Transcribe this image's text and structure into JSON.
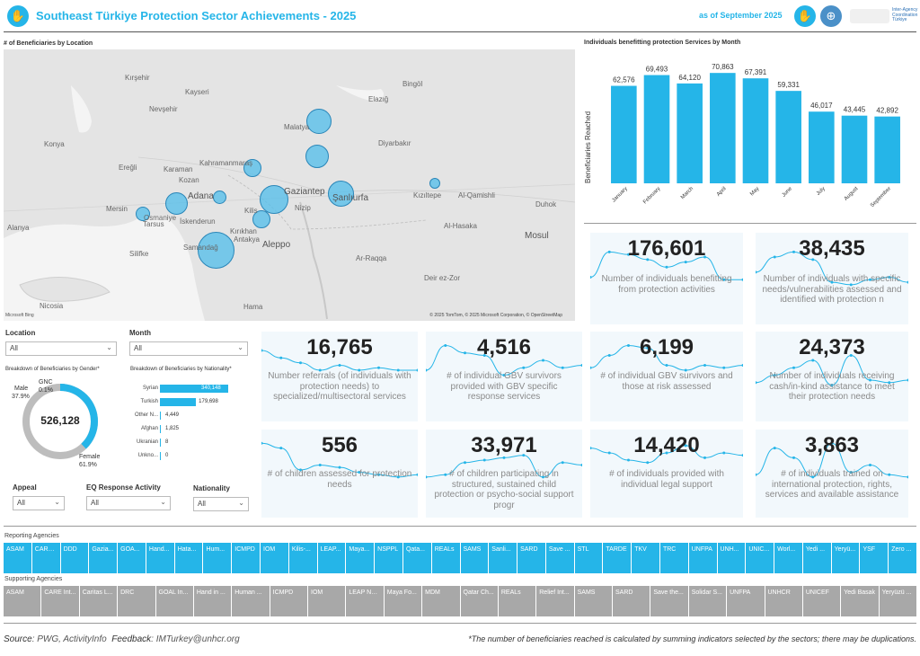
{
  "header": {
    "title": "Southeast Türkiye Protection Sector Achievements - 2025",
    "as_of": "as of September 2025",
    "partner_logo_text": "Inter-Agency Coordination Türkiye"
  },
  "map": {
    "title": "# of Beneficiaries by Location",
    "places": [
      "Kırşehir",
      "Kayseri",
      "Nevşehir",
      "Konya",
      "Ereğli",
      "Karaman",
      "Kahramanmaraş",
      "Adana",
      "Mersin",
      "Osmaniye",
      "İskenderun",
      "Kilis",
      "Kırıkhan",
      "Samandağ",
      "Antakya",
      "Aleppo",
      "Hama",
      "Gaziantep",
      "Nizip",
      "Şanlıurfa",
      "Diyarbakır",
      "Elazığ",
      "Bingöl",
      "Malatya",
      "Kızıltepe",
      "Al-Qamishli",
      "Duhok",
      "Mosul",
      "Al-Hasaka",
      "Ar-Raqqa",
      "Deir ez-Zor",
      "Nicosia",
      "Alanya",
      "Silifke",
      "Tarsus",
      "Kozan"
    ],
    "attribution": "© 2025 TomTom, © 2025 Microsoft Corporation, © OpenStreetMap",
    "provider": "Microsoft Bing"
  },
  "filters": {
    "location": {
      "label": "Location",
      "value": "All"
    },
    "month": {
      "label": "Month",
      "value": "All"
    },
    "appeal": {
      "label": "Appeal",
      "value": "All"
    },
    "eq_response": {
      "label": "EQ Response Activity",
      "value": "All"
    },
    "nationality": {
      "label": "Nationality",
      "value": "All"
    }
  },
  "gender": {
    "title": "Breakdown of Beneficiaries by Gender*",
    "total": "526,128",
    "male_label": "Male",
    "male_pct": "37.9%",
    "gnc_label": "GNC",
    "gnc_pct": "0.1%",
    "female_label": "Female",
    "female_pct": "61.9%",
    "colors": {
      "male": "#25b5e8",
      "female": "#bdbdbd"
    }
  },
  "nationality_chart": {
    "title": "Breakdown of Beneficiaries by Nationality*",
    "rows": [
      {
        "label": "Syrian",
        "value": 340148,
        "text": "340,148"
      },
      {
        "label": "Turkish",
        "value": 179698,
        "text": "179,698"
      },
      {
        "label": "Other N...",
        "value": 4449,
        "text": "4,449"
      },
      {
        "label": "Afghan",
        "value": 1825,
        "text": "1,825"
      },
      {
        "label": "Ukranian",
        "value": 8,
        "text": "8"
      },
      {
        "label": "Unkno...",
        "value": 0,
        "text": "0"
      }
    ]
  },
  "chart_data": {
    "type": "bar",
    "title": "Individuals benefitting protection Services by Month",
    "ylabel": "Beneficiaries Reached",
    "categories": [
      "January",
      "February",
      "March",
      "April",
      "May",
      "June",
      "July",
      "August",
      "September"
    ],
    "values": [
      62576,
      69493,
      64120,
      70863,
      67391,
      59331,
      46017,
      43445,
      42892
    ],
    "labels": [
      "62,576",
      "69,493",
      "64,120",
      "70,863",
      "67,391",
      "59,331",
      "46,017",
      "43,445",
      "42,892"
    ],
    "ylim": [
      0,
      75000
    ],
    "color": "#25b5e8"
  },
  "kpis": [
    {
      "value": "176,601",
      "text": "Number of individuals benefitting from protection activities"
    },
    {
      "value": "38,435",
      "text": "Number of individuals with specific needs/vulnerabilities assessed and identified with protection n"
    },
    {
      "value": "16,765",
      "text": "Number referrals (of individuals with protection needs) to specialized/multisectoral services"
    },
    {
      "value": "4,516",
      "text": "# of individual GBV survivors provided with GBV specific response services"
    },
    {
      "value": "6,199",
      "text": "# of individual GBV survivors and those at risk assessed"
    },
    {
      "value": "24,373",
      "text": "Number of individuals receiving cash/in-kind assistance to meet their protection needs"
    },
    {
      "value": "556",
      "text": "# of children assessed for protection needs"
    },
    {
      "value": "33,971",
      "text": "# of children participating in structured, sustained child protection or psycho-social support progr"
    },
    {
      "value": "14,420",
      "text": "# of individuals provided with individual legal support"
    },
    {
      "value": "3,863",
      "text": "# of individuals trained on international protection, rights, services and available assistance"
    }
  ],
  "reporting": {
    "title": "Reporting Agencies",
    "items": [
      "ASAM",
      "CARE ...",
      "DDD",
      "Gazia...",
      "GOA...",
      "Hand...",
      "Hata...",
      "Hum...",
      "ICMPD",
      "IOM",
      "Kilis-...",
      "LEAP...",
      "Maya...",
      "NSPPL",
      "Qata...",
      "REALs",
      "SAMS",
      "Sanli...",
      "SARD",
      "Save ...",
      "STL",
      "TARDE",
      "TKV",
      "TRC",
      "UNFPA",
      "UNH...",
      "UNIC...",
      "Worl...",
      "Yedi ...",
      "Yeryü...",
      "YSF",
      "Zero ..."
    ]
  },
  "supporting": {
    "title": "Supporting Agencies",
    "items": [
      "ASAM",
      "CARE Int...",
      "Caritas L...",
      "DRC",
      "GOAL In...",
      "Hand in ...",
      "Human ...",
      "ICMPD",
      "IOM",
      "LEAP NGO",
      "Maya Fo...",
      "MDM",
      "Qatar Ch...",
      "REALs",
      "Relief Int...",
      "SAMS",
      "SARD",
      "Save the...",
      "Solidar S...",
      "UNFPA",
      "UNHCR",
      "UNICEF",
      "Yedi Basak",
      "Yeryüzü ..."
    ]
  },
  "footer": {
    "source_label": "Source",
    "source_value": ": PWG, ActivityInfo",
    "feedback_label": "Feedback",
    "feedback_value": ": IMTurkey@unhcr.org",
    "note": "*The number of beneficiaries reached is calculated by summing indicators selected by the sectors; there may be duplications."
  }
}
